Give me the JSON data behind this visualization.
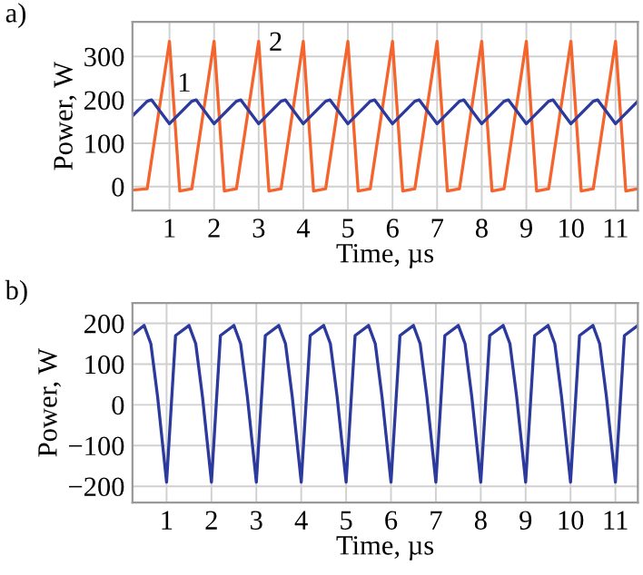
{
  "chart_data": [
    {
      "type": "line",
      "title": "a)",
      "xlabel": "Time, µs",
      "ylabel": "Power, W",
      "series": [
        {
          "name": "2",
          "color": "#f4642c",
          "x": [
            0.17,
            0.5,
            1,
            1.23,
            1.5,
            2,
            2.23,
            2.5,
            3,
            3.23,
            3.5,
            4,
            4.23,
            4.5,
            5,
            5.23,
            5.5,
            6,
            6.23,
            6.5,
            7,
            7.23,
            7.5,
            8,
            8.23,
            8.5,
            9,
            9.23,
            9.5,
            10,
            10.23,
            10.5,
            11,
            11.23,
            11.5
          ],
          "values": [
            -8,
            -5,
            335,
            -10,
            -5,
            335,
            -10,
            -5,
            335,
            -10,
            -5,
            335,
            -10,
            -5,
            335,
            -10,
            -5,
            335,
            -10,
            -5,
            335,
            -10,
            -5,
            335,
            -10,
            -5,
            335,
            -10,
            -5,
            335,
            -10,
            -5,
            335,
            -10,
            -5
          ]
        },
        {
          "name": "1",
          "color": "#2b3a9c",
          "x": [
            0.17,
            0.5,
            0.6,
            1,
            1.5,
            1.6,
            2,
            2.5,
            2.6,
            3,
            3.5,
            3.6,
            4,
            4.5,
            4.6,
            5,
            5.5,
            5.6,
            6,
            6.5,
            6.6,
            7,
            7.5,
            7.6,
            8,
            8.5,
            8.6,
            9,
            9.5,
            9.6,
            10,
            10.5,
            10.6,
            11,
            11.5
          ],
          "values": [
            163,
            197,
            200,
            145,
            197,
            200,
            145,
            197,
            200,
            145,
            197,
            200,
            145,
            197,
            200,
            145,
            197,
            200,
            145,
            197,
            200,
            145,
            197,
            200,
            145,
            197,
            200,
            145,
            197,
            200,
            145,
            197,
            200,
            145,
            197
          ]
        }
      ],
      "xlim": [
        0.17,
        11.5
      ],
      "xticks": [
        1,
        2,
        3,
        4,
        5,
        6,
        7,
        8,
        9,
        10,
        11
      ],
      "ylim": [
        -55,
        380
      ],
      "yticks": [
        0,
        100,
        200,
        300
      ],
      "grid": true,
      "marker": "none",
      "line_style": "solid"
    },
    {
      "type": "line",
      "title": "b)",
      "xlabel": "Time, µs",
      "ylabel": "Power, W",
      "series": [
        {
          "color": "#2b3a9c",
          "x": [
            0.24,
            0.5,
            0.65,
            0.8,
            1,
            1.2,
            1.5,
            1.65,
            1.8,
            2,
            2.2,
            2.5,
            2.65,
            2.8,
            3,
            3.2,
            3.5,
            3.65,
            3.8,
            4,
            4.2,
            4.5,
            4.65,
            4.8,
            5,
            5.2,
            5.5,
            5.65,
            5.8,
            6,
            6.2,
            6.5,
            6.65,
            6.8,
            7,
            7.2,
            7.5,
            7.65,
            7.8,
            8,
            8.2,
            8.5,
            8.65,
            8.8,
            9,
            9.2,
            9.5,
            9.65,
            9.8,
            10,
            10.2,
            10.5,
            10.65,
            10.8,
            11,
            11.2,
            11.5
          ],
          "values": [
            172,
            195,
            150,
            20,
            -190,
            170,
            195,
            150,
            20,
            -190,
            170,
            195,
            150,
            20,
            -190,
            170,
            195,
            150,
            20,
            -190,
            170,
            195,
            150,
            20,
            -190,
            170,
            195,
            150,
            20,
            -190,
            170,
            195,
            150,
            20,
            -190,
            170,
            195,
            150,
            20,
            -190,
            170,
            195,
            150,
            20,
            -190,
            170,
            195,
            150,
            20,
            -190,
            170,
            195,
            150,
            20,
            -190,
            170,
            195
          ]
        }
      ],
      "xlim": [
        0.24,
        11.5
      ],
      "xticks": [
        1,
        2,
        3,
        4,
        5,
        6,
        7,
        8,
        9,
        10,
        11
      ],
      "ylim": [
        -240,
        250
      ],
      "yticks": [
        -200,
        -100,
        0,
        100,
        200
      ],
      "grid": true,
      "marker": "none",
      "line_style": "solid"
    }
  ]
}
